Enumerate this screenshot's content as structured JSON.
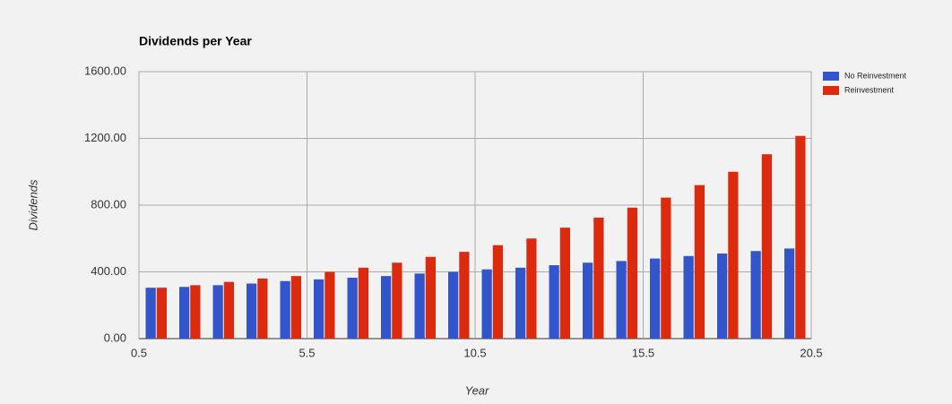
{
  "chart_data": {
    "type": "bar",
    "title": "Dividends per Year",
    "x_label": "Year",
    "y_label": "Dividends",
    "x": [
      1,
      2,
      3,
      4,
      5,
      6,
      7,
      8,
      9,
      10,
      11,
      12,
      13,
      14,
      15,
      16,
      17,
      18,
      19,
      20
    ],
    "series": [
      {
        "name": "No Reinvestment",
        "color": "#3355cc",
        "values": [
          305,
          310,
          320,
          330,
          345,
          355,
          365,
          375,
          390,
          400,
          415,
          425,
          440,
          455,
          465,
          480,
          495,
          510,
          525,
          540
        ]
      },
      {
        "name": "Reinvestment",
        "color": "#dc2a0e",
        "values": [
          305,
          320,
          340,
          360,
          375,
          400,
          425,
          455,
          490,
          520,
          560,
          600,
          665,
          725,
          785,
          845,
          920,
          1000,
          1105,
          1215
        ]
      }
    ],
    "xlim": [
      0.5,
      20.5
    ],
    "xticks": [
      0.5,
      5.5,
      10.5,
      15.5,
      20.5
    ],
    "ylim": [
      0,
      1600
    ],
    "yticks": [
      {
        "value": 0,
        "label": "0.00"
      },
      {
        "value": 400,
        "label": "400.00"
      },
      {
        "value": 800,
        "label": "800.00"
      },
      {
        "value": 1200,
        "label": "1200.00"
      },
      {
        "value": 1600,
        "label": "1600.00"
      }
    ],
    "grid": true,
    "legend": "right"
  }
}
